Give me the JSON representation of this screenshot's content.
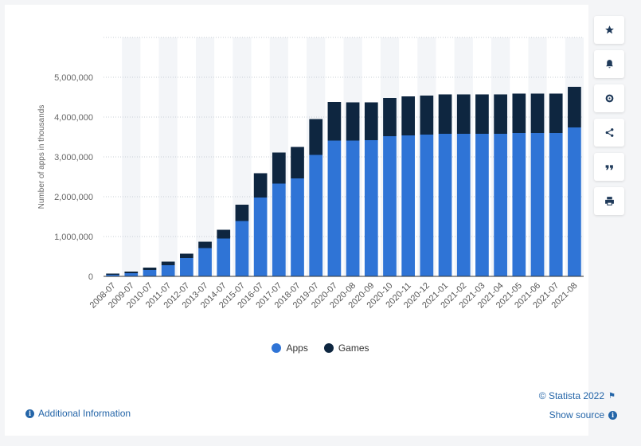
{
  "chart_data": {
    "type": "bar",
    "stacked": true,
    "categories": [
      "2008-07",
      "2009-07",
      "2010-07",
      "2011-07",
      "2012-07",
      "2013-07",
      "2014-07",
      "2015-07",
      "2016-07",
      "2017-07",
      "2018-07",
      "2019-07",
      "2020-07",
      "2020-08",
      "2020-09",
      "2020-10",
      "2020-11",
      "2020-12",
      "2021-01",
      "2021-02",
      "2021-03",
      "2021-04",
      "2021-05",
      "2021-06",
      "2021-07",
      "2021-08"
    ],
    "series": [
      {
        "name": "Apps",
        "color": "#2f74d6",
        "values": [
          40000,
          80000,
          160000,
          280000,
          460000,
          710000,
          950000,
          1390000,
          1980000,
          2330000,
          2460000,
          3050000,
          3410000,
          3410000,
          3420000,
          3520000,
          3540000,
          3560000,
          3580000,
          3580000,
          3580000,
          3580000,
          3600000,
          3600000,
          3600000,
          3740000
        ]
      },
      {
        "name": "Games",
        "color": "#0e2640",
        "values": [
          30000,
          40000,
          60000,
          90000,
          110000,
          160000,
          220000,
          410000,
          610000,
          780000,
          790000,
          900000,
          970000,
          960000,
          950000,
          960000,
          980000,
          980000,
          990000,
          990000,
          990000,
          990000,
          990000,
          990000,
          990000,
          1020000
        ]
      }
    ],
    "ylabel": "Number of apps in thousands",
    "yticks": [
      "0",
      "1,000,000",
      "2,000,000",
      "3,000,000",
      "4,000,000",
      "5,000,000"
    ],
    "ytick_values": [
      0,
      1000000,
      2000000,
      3000000,
      4000000,
      5000000
    ],
    "ylim": [
      0,
      6000000
    ],
    "grid": true,
    "legend_position": "bottom-center"
  },
  "legend": {
    "apps": "Apps",
    "games": "Games"
  },
  "footer": {
    "additional_info": "Additional Information",
    "copyright": "© Statista 2022",
    "show_source": "Show source"
  },
  "toolbar_icons": [
    "star-icon",
    "bell-icon",
    "gear-icon",
    "share-icon",
    "quote-icon",
    "print-icon"
  ]
}
